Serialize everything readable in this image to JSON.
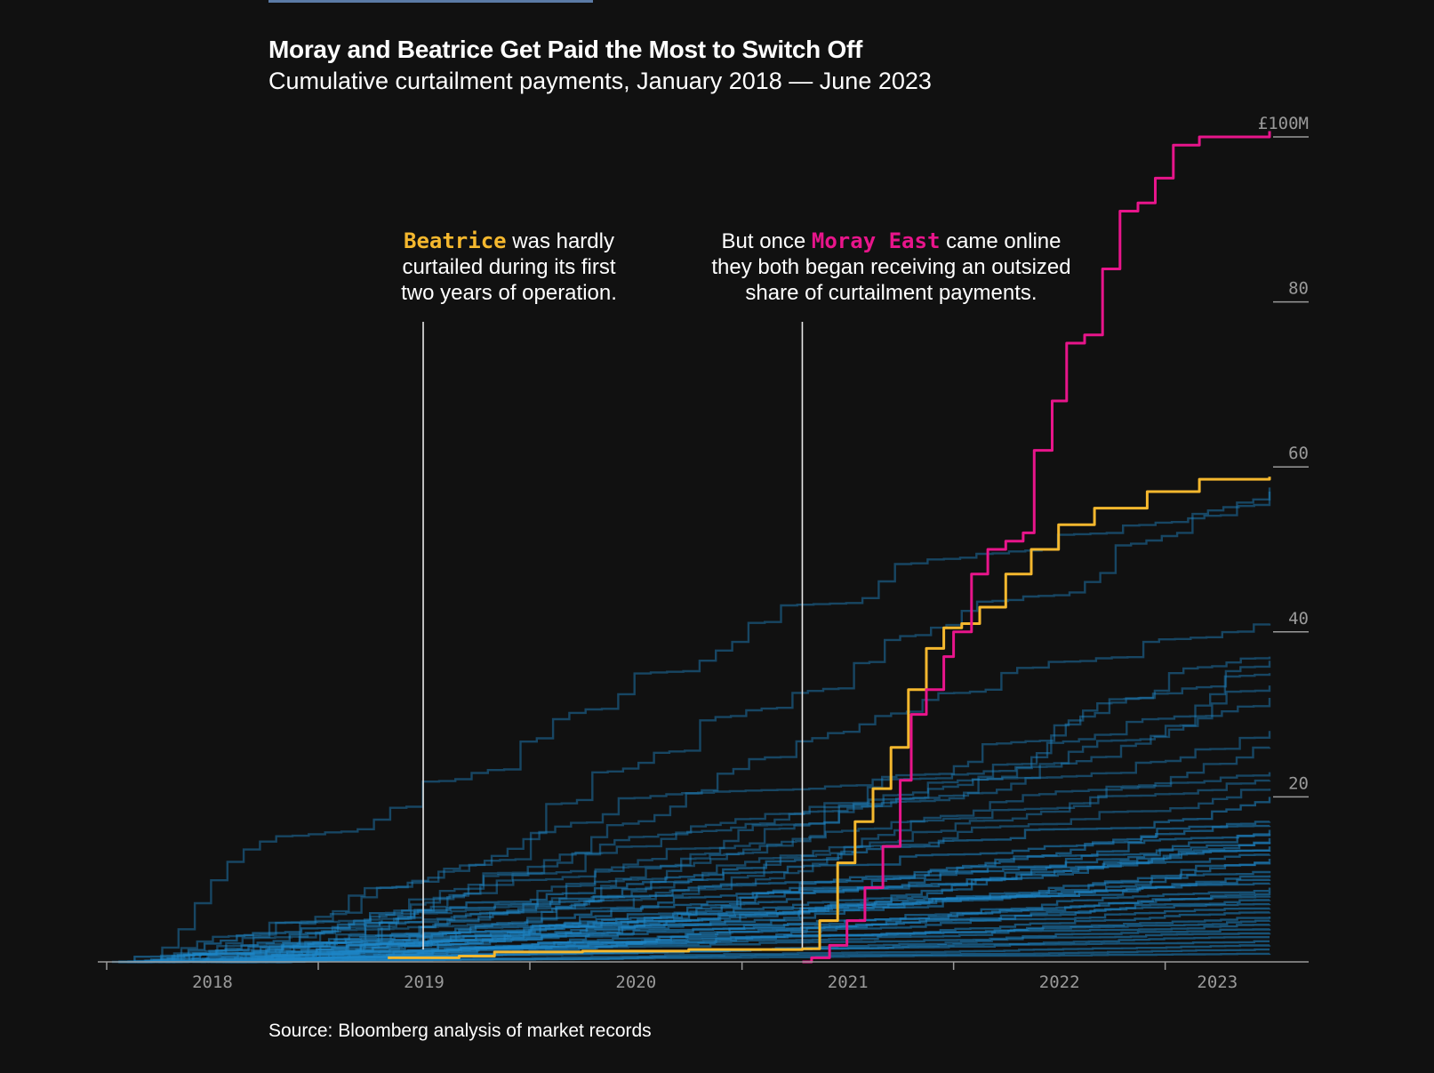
{
  "title": "Moray and Beatrice Get Paid the Most to Switch Off",
  "subtitle": "Cumulative curtailment payments, January 2018 — June 2023",
  "source": "Source: Bloomberg analysis of market records",
  "annotations": {
    "beatrice": {
      "highlight": "Beatrice",
      "line1_rest": " was hardly",
      "line2": "curtailed during its first",
      "line3": "two years of operation.",
      "date": "2019-07-01"
    },
    "moray": {
      "prefix": "But once ",
      "highlight": "Moray East",
      "line1_rest": " came online",
      "line2": "they both began receiving an outsized",
      "line3": "share of curtailment payments.",
      "date": "2021-04-15"
    }
  },
  "colors": {
    "background": "#111111",
    "beatrice": "#f5b82e",
    "moray_east": "#e8158b",
    "other_farms": "#1e87c8",
    "axis": "#9a9a9a",
    "top_bar": "#5b7ba6"
  },
  "chart_data": {
    "type": "line",
    "title": "Moray and Beatrice Get Paid the Most to Switch Off",
    "subtitle": "Cumulative curtailment payments, January 2018 — June 2023",
    "x_range": [
      "2018-01-01",
      "2023-06-30"
    ],
    "ylim": [
      0,
      100
    ],
    "y_ticks": [
      {
        "value": 100,
        "label": "£100M"
      },
      {
        "value": 80,
        "label": "80"
      },
      {
        "value": 60,
        "label": "60"
      },
      {
        "value": 40,
        "label": "40"
      },
      {
        "value": 20,
        "label": "20"
      }
    ],
    "x_ticks": [
      "2018",
      "2019",
      "2020",
      "2021",
      "2022",
      "2023"
    ],
    "grid": false,
    "highlighted_series": [
      {
        "name": "Moray East",
        "color": "#e8158b",
        "points": [
          [
            "2021-04-15",
            0
          ],
          [
            "2021-05-01",
            0.5
          ],
          [
            "2021-06-01",
            2
          ],
          [
            "2021-07-01",
            5
          ],
          [
            "2021-08-01",
            9
          ],
          [
            "2021-09-01",
            14
          ],
          [
            "2021-10-01",
            22
          ],
          [
            "2021-10-20",
            30
          ],
          [
            "2021-11-15",
            33
          ],
          [
            "2021-12-15",
            37
          ],
          [
            "2022-01-01",
            40
          ],
          [
            "2022-02-01",
            47
          ],
          [
            "2022-03-01",
            50
          ],
          [
            "2022-04-01",
            51
          ],
          [
            "2022-05-01",
            52
          ],
          [
            "2022-05-20",
            62
          ],
          [
            "2022-06-20",
            68
          ],
          [
            "2022-07-15",
            75
          ],
          [
            "2022-08-15",
            76
          ],
          [
            "2022-09-15",
            84
          ],
          [
            "2022-10-15",
            91
          ],
          [
            "2022-11-15",
            92
          ],
          [
            "2022-12-15",
            95
          ],
          [
            "2023-01-15",
            99
          ],
          [
            "2023-03-01",
            100
          ],
          [
            "2023-06-30",
            100.7
          ]
        ]
      },
      {
        "name": "Beatrice",
        "color": "#f5b82e",
        "points": [
          [
            "2019-05-01",
            0.5
          ],
          [
            "2019-09-01",
            0.7
          ],
          [
            "2019-11-01",
            1.2
          ],
          [
            "2020-04-01",
            1.3
          ],
          [
            "2020-10-01",
            1.5
          ],
          [
            "2021-04-15",
            1.6
          ],
          [
            "2021-05-15",
            5
          ],
          [
            "2021-06-15",
            12
          ],
          [
            "2021-07-15",
            17
          ],
          [
            "2021-08-15",
            21
          ],
          [
            "2021-09-15",
            26
          ],
          [
            "2021-10-15",
            33
          ],
          [
            "2021-11-15",
            38
          ],
          [
            "2021-12-15",
            40.5
          ],
          [
            "2022-01-15",
            41
          ],
          [
            "2022-02-15",
            43
          ],
          [
            "2022-04-01",
            47
          ],
          [
            "2022-05-15",
            50
          ],
          [
            "2022-07-01",
            53
          ],
          [
            "2022-09-01",
            55
          ],
          [
            "2022-12-01",
            57
          ],
          [
            "2023-03-01",
            58.5
          ],
          [
            "2023-06-30",
            58.8
          ]
        ]
      }
    ],
    "background_series": {
      "name": "Other wind farms",
      "color": "#1e87c8",
      "final_values": [
        57,
        57.5,
        41,
        37,
        36.5,
        35,
        33.5,
        32,
        28,
        26,
        23,
        22,
        21,
        20,
        17,
        16.5,
        16,
        15.5,
        15,
        14.5,
        14,
        13.5,
        13,
        12.5,
        12,
        11,
        10.5,
        10,
        9.5,
        9,
        8.5,
        8,
        7.5,
        7,
        6.5,
        6,
        5.5,
        5,
        4.5,
        4,
        3.5,
        3,
        2.5,
        2,
        1.5,
        1
      ]
    }
  }
}
